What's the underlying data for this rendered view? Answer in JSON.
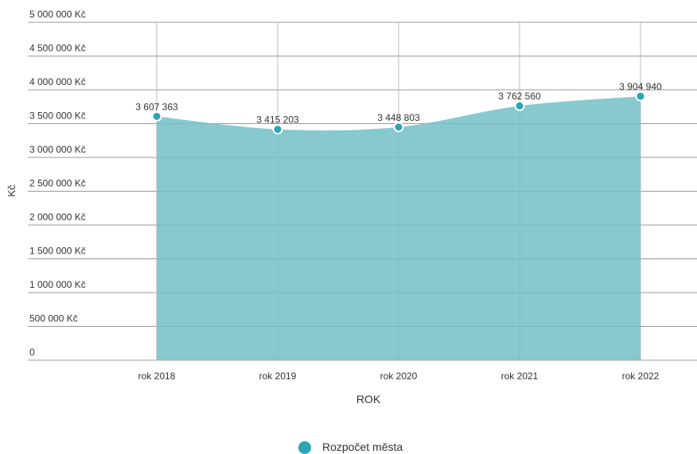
{
  "chart_data": {
    "type": "area",
    "categories": [
      "rok 2018",
      "rok 2019",
      "rok 2020",
      "rok 2021",
      "rok 2022"
    ],
    "series": [
      {
        "name": "Rozpočet města",
        "color": "#2aa5b4",
        "fill": "#72bfc6",
        "values": [
          3607363,
          3415203,
          3448803,
          3762560,
          3904940
        ],
        "value_labels": [
          "3 607 363",
          "3 415 203",
          "3 448 803",
          "3 762 560",
          "3 904 940"
        ]
      }
    ],
    "xlabel": "ROK",
    "ylabel": "Kč",
    "ylim": [
      0,
      5000000
    ],
    "yticks": [
      0,
      {
        "value": 500000,
        "label": "500 000 Kč"
      },
      {
        "value": 1000000,
        "label": "1 000 000 Kč"
      },
      {
        "value": 1500000,
        "label": "1 500 000 Kč"
      },
      {
        "value": 2000000,
        "label": "2 000 000 Kč"
      },
      {
        "value": 2500000,
        "label": "2 500 000 Kč"
      },
      {
        "value": 3000000,
        "label": "3 000 000 Kč"
      },
      {
        "value": 3500000,
        "label": "3 500 000 Kč"
      },
      {
        "value": 4000000,
        "label": "4 000 000 Kč"
      },
      {
        "value": 4500000,
        "label": "4 500 000 Kč"
      },
      {
        "value": 5000000,
        "label": "5 000 000 Kč"
      }
    ],
    "grid": true,
    "legend": "bottom"
  }
}
